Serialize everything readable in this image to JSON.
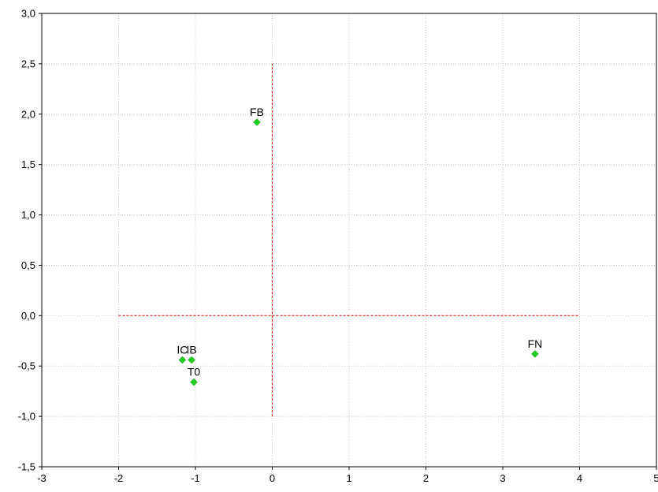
{
  "chart_data": {
    "type": "scatter",
    "xlim": [
      -3,
      5
    ],
    "ylim": [
      -1.5,
      3.0
    ],
    "x_ticks": [
      {
        "value": -3,
        "label": "-3"
      },
      {
        "value": -2,
        "label": "-2"
      },
      {
        "value": -1,
        "label": "-1"
      },
      {
        "value": 0,
        "label": "0"
      },
      {
        "value": 1,
        "label": "1"
      },
      {
        "value": 2,
        "label": "2"
      },
      {
        "value": 3,
        "label": "3"
      },
      {
        "value": 4,
        "label": "4"
      },
      {
        "value": 5,
        "label": "5"
      }
    ],
    "y_ticks": [
      {
        "value": -1.5,
        "label": "-1,5"
      },
      {
        "value": -1.0,
        "label": "-1,0"
      },
      {
        "value": -0.5,
        "label": "-0,5"
      },
      {
        "value": 0.0,
        "label": "0,0"
      },
      {
        "value": 0.5,
        "label": "0,5"
      },
      {
        "value": 1.0,
        "label": "1,0"
      },
      {
        "value": 1.5,
        "label": "1,5"
      },
      {
        "value": 2.0,
        "label": "2,0"
      },
      {
        "value": 2.5,
        "label": "2,5"
      },
      {
        "value": 3.0,
        "label": "3,0"
      }
    ],
    "grid": true,
    "points": [
      {
        "label": "FB",
        "x": -0.2,
        "y": 1.92
      },
      {
        "label": "FN",
        "x": 3.42,
        "y": -0.38
      },
      {
        "label": "IC",
        "x": -1.17,
        "y": -0.44
      },
      {
        "label": "IB",
        "x": -1.05,
        "y": -0.44
      },
      {
        "label": "T0",
        "x": -1.02,
        "y": -0.66
      }
    ],
    "reference_lines": [
      {
        "orientation": "horizontal",
        "y": 0.0,
        "x_from": -2.0,
        "x_to": 4.0
      },
      {
        "orientation": "vertical",
        "x": 0.0,
        "y_from": -1.0,
        "y_to": 2.5
      }
    ],
    "colors": {
      "marker": "#22cc22",
      "reference_line": "#e0241b",
      "grid": "#c8c8c8"
    }
  }
}
